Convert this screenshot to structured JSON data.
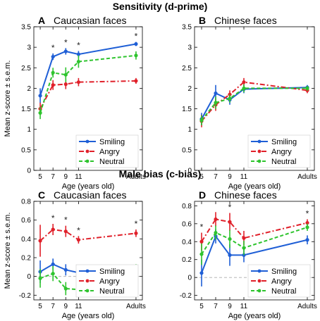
{
  "sections": {
    "top_title": "Sensitivity (d-prime)",
    "bottom_title": "Male bias (c-bias)"
  },
  "colors": {
    "smiling": "#1f5fd6",
    "angry": "#e0202a",
    "neutral": "#2ec42e",
    "zero_line": "#aaaaaa"
  },
  "legend_labels": [
    "Smiling",
    "Angry",
    "Neutral"
  ],
  "chart_data": [
    {
      "id": "A",
      "type": "line",
      "panel_label": "A",
      "title": "Caucasian faces",
      "xlabel": "Age (years old)",
      "ylabel": "Mean z-score ± s.e.m.",
      "x": [
        "5",
        "7",
        "9",
        "11",
        "Adults"
      ],
      "x_positions": [
        5,
        7,
        9,
        11,
        20
      ],
      "ylim": [
        0,
        3.5
      ],
      "yticks": [
        "0",
        "0.5",
        "1",
        "1.5",
        "2",
        "2.5",
        "3",
        "3.5"
      ],
      "ytick_values": [
        0,
        0.5,
        1,
        1.5,
        2,
        2.5,
        3,
        3.5
      ],
      "legend_position": "bottom-right",
      "significance": [
        "*",
        "*",
        "*",
        "*"
      ],
      "significance_at": [
        "7",
        "9",
        "11",
        "Adults"
      ],
      "series": [
        {
          "name": "Smiling",
          "values": [
            1.82,
            2.77,
            2.9,
            2.83,
            3.08
          ],
          "errors": [
            0.18,
            0.08,
            0.08,
            0.08,
            0.05
          ],
          "style": "solid"
        },
        {
          "name": "Angry",
          "values": [
            1.5,
            2.08,
            2.1,
            2.15,
            2.18
          ],
          "errors": [
            0.15,
            0.12,
            0.12,
            0.1,
            0.07
          ],
          "style": "dashdot"
        },
        {
          "name": "Neutral",
          "values": [
            1.4,
            2.38,
            2.33,
            2.65,
            2.8
          ],
          "errors": [
            0.15,
            0.12,
            0.18,
            0.15,
            0.1
          ],
          "style": "dashed"
        }
      ]
    },
    {
      "id": "B",
      "type": "line",
      "panel_label": "B",
      "title": "Chinese faces",
      "xlabel": "Age (years old)",
      "ylabel": "",
      "x": [
        "5",
        "7",
        "9",
        "11",
        "Adults"
      ],
      "x_positions": [
        5,
        7,
        9,
        11,
        20
      ],
      "ylim": [
        0,
        3.5
      ],
      "yticks": [
        "0",
        "0.5",
        "1",
        "1.5",
        "2",
        "2.5",
        "3",
        "3.5"
      ],
      "ytick_values": [
        0,
        0.5,
        1,
        1.5,
        2,
        2.5,
        3,
        3.5
      ],
      "legend_position": "bottom-right",
      "significance": [],
      "significance_at": [],
      "series": [
        {
          "name": "Smiling",
          "values": [
            1.25,
            1.88,
            1.72,
            1.98,
            2.02
          ],
          "errors": [
            0.15,
            0.2,
            0.12,
            0.1,
            0.06
          ],
          "style": "solid"
        },
        {
          "name": "Angry",
          "values": [
            1.2,
            1.6,
            1.85,
            2.15,
            1.95
          ],
          "errors": [
            0.15,
            0.15,
            0.1,
            0.1,
            0.07
          ],
          "style": "dashdot"
        },
        {
          "name": "Neutral",
          "values": [
            1.22,
            1.65,
            1.75,
            2.0,
            2.0
          ],
          "errors": [
            0.12,
            0.15,
            0.1,
            0.1,
            0.06
          ],
          "style": "dashed"
        }
      ]
    },
    {
      "id": "C",
      "type": "line",
      "panel_label": "C",
      "title": "Caucasian faces",
      "xlabel": "Age (years old)",
      "ylabel": "Mean z-score ± s.e.m.",
      "x": [
        "5",
        "7",
        "9",
        "11",
        "Adults"
      ],
      "x_positions": [
        5,
        7,
        9,
        11,
        20
      ],
      "ylim": [
        -0.25,
        0.8
      ],
      "yticks": [
        "-0.2",
        "0",
        "0.2",
        "0.4",
        "0.6",
        "0.8"
      ],
      "ytick_values": [
        -0.2,
        0,
        0.2,
        0.4,
        0.6,
        0.8
      ],
      "legend_position": "bottom-right",
      "significance": [
        "*",
        "*",
        "*",
        "*"
      ],
      "significance_at": [
        "7",
        "9",
        "11",
        "Adults"
      ],
      "series": [
        {
          "name": "Smiling",
          "values": [
            0.05,
            0.13,
            0.07,
            0.04,
            -0.03
          ],
          "errors": [
            0.12,
            0.06,
            0.06,
            0.05,
            0.03
          ],
          "style": "solid"
        },
        {
          "name": "Angry",
          "values": [
            0.38,
            0.5,
            0.48,
            0.39,
            0.46
          ],
          "errors": [
            0.17,
            0.06,
            0.06,
            0.04,
            0.04
          ],
          "style": "dashdot"
        },
        {
          "name": "Neutral",
          "values": [
            -0.02,
            0.03,
            -0.13,
            -0.14,
            0.08
          ],
          "errors": [
            0.1,
            0.08,
            0.07,
            0.05,
            0.05
          ],
          "style": "dashed"
        }
      ]
    },
    {
      "id": "D",
      "type": "line",
      "panel_label": "D",
      "title": "Chinese faces",
      "xlabel": "Age (years old)",
      "ylabel": "",
      "x": [
        "5",
        "7",
        "9",
        "11",
        "Adults"
      ],
      "x_positions": [
        5,
        7,
        9,
        11,
        20
      ],
      "ylim": [
        -0.25,
        0.85
      ],
      "yticks": [
        "-0.2",
        "0",
        "0.2",
        "0.4",
        "0.6",
        "0.8"
      ],
      "ytick_values": [
        -0.2,
        0,
        0.2,
        0.4,
        0.6,
        0.8
      ],
      "legend_position": "bottom-right",
      "significance": [
        "*",
        "*",
        "*"
      ],
      "significance_at": [
        "5",
        "9",
        "Adults"
      ],
      "series": [
        {
          "name": "Smiling",
          "values": [
            0.05,
            0.46,
            0.25,
            0.25,
            0.42
          ],
          "errors": [
            0.15,
            0.08,
            0.12,
            0.08,
            0.05
          ],
          "style": "solid"
        },
        {
          "name": "Angry",
          "values": [
            0.4,
            0.65,
            0.62,
            0.44,
            0.61
          ],
          "errors": [
            0.1,
            0.08,
            0.1,
            0.08,
            0.04
          ],
          "style": "dashdot"
        },
        {
          "name": "Neutral",
          "values": [
            0.26,
            0.5,
            0.43,
            0.33,
            0.56
          ],
          "errors": [
            0.12,
            0.08,
            0.1,
            0.08,
            0.04
          ],
          "style": "dashed"
        }
      ]
    }
  ]
}
